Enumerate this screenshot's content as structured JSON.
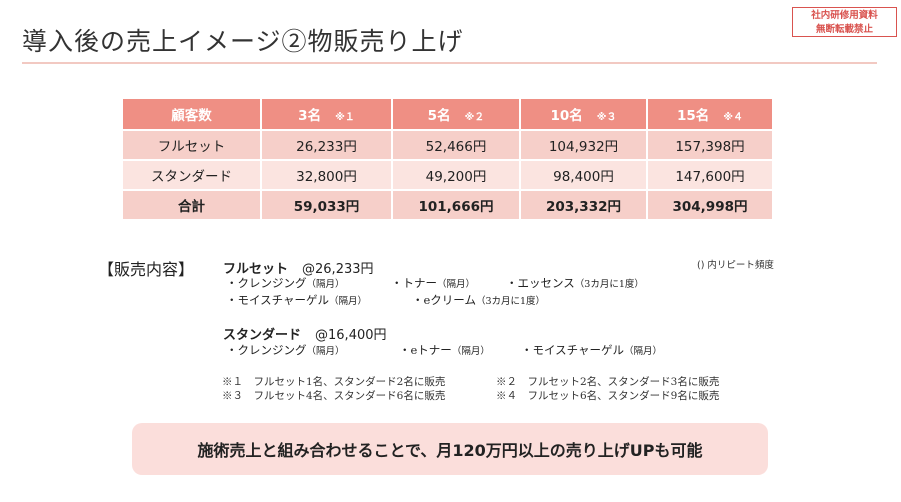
{
  "title": "導入後の売上イメージ②物販売り上げ",
  "stamp": {
    "line1": "社内研修用資料",
    "line2": "無断転載禁止"
  },
  "table": {
    "header": [
      {
        "label": "顧客数",
        "note": ""
      },
      {
        "label": "3名",
        "note": "※１"
      },
      {
        "label": "5名",
        "note": "※２"
      },
      {
        "label": "10名",
        "note": "※３"
      },
      {
        "label": "15名",
        "note": "※４"
      }
    ],
    "rows": [
      {
        "name": "フルセット",
        "values": [
          "26,233円",
          "52,466円",
          "104,932円",
          "157,398円"
        ]
      },
      {
        "name": "スタンダード",
        "values": [
          "32,800円",
          "49,200円",
          "98,400円",
          "147,600円"
        ]
      },
      {
        "name": "合計",
        "values": [
          "59,033円",
          "101,666円",
          "203,332円",
          "304,998円"
        ]
      }
    ]
  },
  "section_label": "【販売内容】",
  "frequency_note": "() 内リピート頻度",
  "fullset": {
    "name": "フルセット",
    "price": "@26,233円",
    "items": [
      {
        "name": "・クレンジング",
        "freq": "（隔月）"
      },
      {
        "name": "・トナー",
        "freq": "（隔月）"
      },
      {
        "name": "・エッセンス",
        "freq": "（3カ月に1度）"
      },
      {
        "name": "・モイスチャーゲル",
        "freq": "（隔月）"
      },
      {
        "name": "・eクリーム",
        "freq": "（3カ月に1度）"
      }
    ]
  },
  "standard": {
    "name": "スタンダード",
    "price": "@16,400円",
    "items": [
      {
        "name": "・クレンジング",
        "freq": "（隔月）"
      },
      {
        "name": "・eトナー",
        "freq": "（隔月）"
      },
      {
        "name": "・モイスチャーゲル",
        "freq": "（隔月）"
      }
    ]
  },
  "notes": [
    "※１　フルセット1名、スタンダード2名に販売",
    "※２　フルセット2名、スタンダード3名に販売",
    "※３　フルセット4名、スタンダード6名に販売",
    "※４　フルセット6名、スタンダード9名に販売"
  ],
  "banner": "施術売上と組み合わせることで、月120万円以上の売り上げUPも可能"
}
